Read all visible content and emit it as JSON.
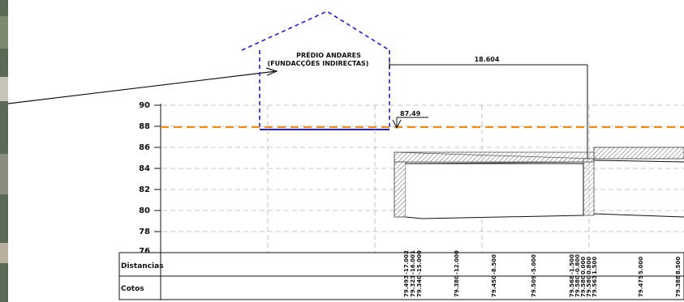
{
  "building": {
    "line1": "PRÉDIO ANDARES",
    "line2": "(FUNDACÇÕES INDIRECTAS)"
  },
  "dimension_label": "18.604",
  "level_label": "87.49",
  "y_axis_ticks": [
    "90",
    "88",
    "86",
    "84",
    "82",
    "80",
    "78",
    "76"
  ],
  "table": {
    "row1_label": "Distancias",
    "row2_label": "Cotos",
    "distances": [
      "-17.002",
      "-16.001",
      "-15.000",
      "-12.000",
      "-8.500",
      "-5.000",
      "-1.500",
      "-0.800",
      "0.000",
      "0.800",
      "1.500",
      "5.000",
      "8.500"
    ],
    "elevations": [
      "79.493",
      "79.323",
      "79.340",
      "79.380",
      "79.450",
      "79.509",
      "79.568",
      "79.580",
      "79.580",
      "79.580",
      "79.563",
      "79.475",
      "79.388"
    ]
  },
  "colors": {
    "building_outline": "#1f1fd6",
    "water_level": "#ef8a17",
    "grid": "#b5b5b5",
    "ink": "#111111",
    "photo_strip": "#5b6a55"
  }
}
